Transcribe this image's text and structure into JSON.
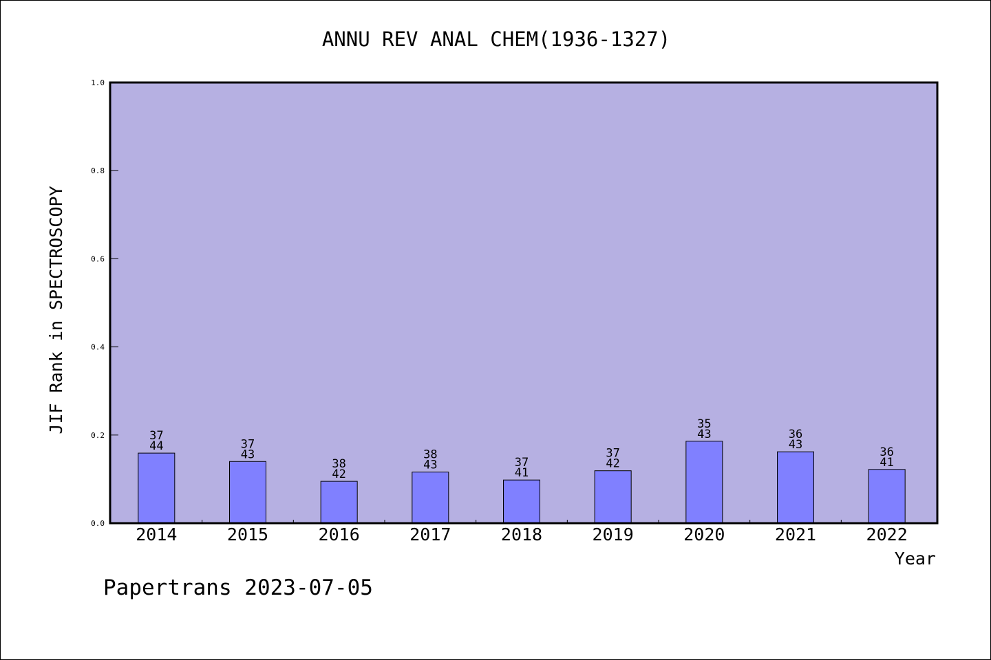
{
  "chart_data": {
    "type": "bar",
    "title": "ANNU REV ANAL CHEM(1936-1327)",
    "xlabel": "Year",
    "ylabel": "JIF Rank in SPECTROSCOPY",
    "ylim": [
      0,
      1.0
    ],
    "yticks": [
      "0.0",
      "0.2",
      "0.4",
      "0.6",
      "0.8",
      "1.0"
    ],
    "grid": false,
    "categories": [
      "2014",
      "2015",
      "2016",
      "2017",
      "2018",
      "2019",
      "2020",
      "2021",
      "2022"
    ],
    "values": [
      0.159,
      0.14,
      0.095,
      0.116,
      0.098,
      0.119,
      0.186,
      0.162,
      0.122
    ],
    "ranks": [
      "37",
      "37",
      "38",
      "38",
      "37",
      "37",
      "35",
      "36",
      "36"
    ],
    "totals": [
      "44",
      "43",
      "42",
      "43",
      "41",
      "42",
      "43",
      "43",
      "41"
    ],
    "colors": {
      "plot_background": "#b6b0e2",
      "bar_fill": "#8080ff",
      "axis": "#000000"
    }
  },
  "footer": {
    "credit": "Papertrans 2023-07-05"
  }
}
